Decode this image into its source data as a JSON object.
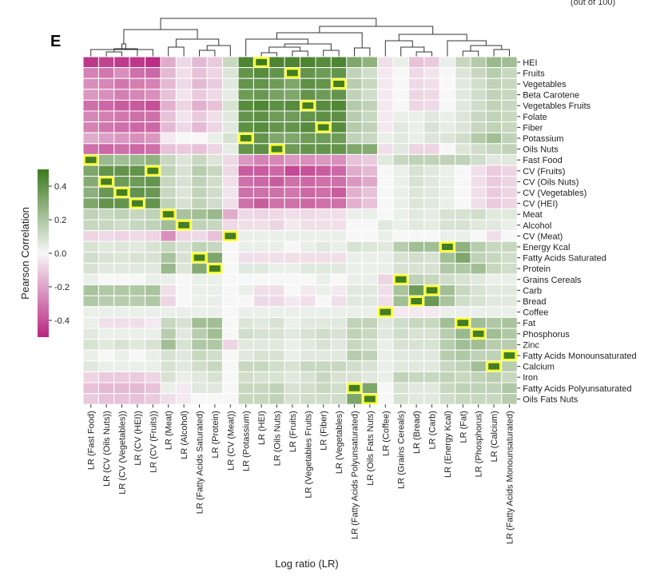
{
  "figure": {
    "panel_label": "E",
    "top_right_note": "(out of 100)"
  },
  "chart_data": {
    "type": "heatmap",
    "title": "",
    "xlabel": "Log ratio (LR)",
    "colorbar_label": "Pearson Correlation",
    "colorbar_range": [
      -0.5,
      0.5
    ],
    "colorbar_ticks": [
      "0.4",
      "0.2",
      "0.0",
      "-0.2",
      "-0.4"
    ],
    "colorbar_tick_values": [
      0.4,
      0.2,
      0.0,
      -0.2,
      -0.4
    ],
    "colors": {
      "negative": "#b8267f",
      "neutral": "#f7f7f7",
      "positive": "#3d7a1f",
      "highlight": "#ffff33",
      "grid": "#ffffff"
    },
    "rows": [
      "HEI",
      "Fruits",
      "Vegetables",
      "Beta Carotene",
      "Vegetables Fruits",
      "Folate",
      "Fiber",
      "Potassium",
      "Oils Nuts",
      "Fast Food",
      "CV (Fruits)",
      "CV (Oils Nuts)",
      "CV (Vegetables)",
      "CV (HEI)",
      "Meat",
      "Alcohol",
      "CV (Meat)",
      "Energy Kcal",
      "Fatty Acids Saturated",
      "Protein",
      "Grains Cereals",
      "Carb",
      "Bread",
      "Coffee",
      "Fat",
      "Phosphorus",
      "Zinc",
      "Fatty Acids Monounsaturated",
      "Calcium",
      "Iron",
      "Fatty Acids Polyunsaturated",
      "Oils Fats Nuts"
    ],
    "columns": [
      "LR (Fast Food)",
      "LR (CV (Oils Nuts))",
      "LR (CV (Vegetables))",
      "LR (CV (HEI))",
      "LR (CV (Fruits))",
      "LR (Meat)",
      "LR (Alcohol)",
      "LR (Fatty Acids Saturated)",
      "LR (Protein)",
      "LR (CV (Meat))",
      "LR (Potassium)",
      "LR (HEI)",
      "LR (Oils Nuts)",
      "LR (Fruits)",
      "LR (Vegetables Fruits)",
      "LR (Fiber)",
      "LR (Vegetables)",
      "LR (Fatty Acids Polyunsaturated)",
      "LR (Oils Fats Nuts)",
      "LR (Coffee)",
      "LR (Grains Cereals)",
      "LR (Bread)",
      "LR (Carb)",
      "LR (Energy Kcal)",
      "LR (Fat)",
      "LR (Phosphorus)",
      "LR (Calcium)",
      "LR (Fatty Acids Monounsaturated)"
    ],
    "values": [
      [
        -0.45,
        -0.42,
        -0.44,
        -0.45,
        -0.48,
        -0.15,
        -0.05,
        -0.12,
        -0.08,
        0.1,
        0.45,
        0.5,
        0.45,
        0.45,
        0.45,
        0.42,
        0.45,
        0.3,
        0.25,
        -0.04,
        0.02,
        -0.1,
        -0.08,
        0.02,
        0.1,
        0.15,
        0.22,
        0.2
      ],
      [
        -0.25,
        -0.28,
        -0.22,
        -0.3,
        -0.32,
        -0.12,
        -0.04,
        -0.1,
        -0.06,
        0.05,
        0.38,
        0.42,
        0.38,
        0.48,
        0.38,
        0.35,
        0.38,
        0.12,
        0.08,
        -0.02,
        0.0,
        -0.05,
        -0.03,
        0.0,
        0.05,
        0.1,
        0.14,
        0.1
      ],
      [
        -0.22,
        -0.24,
        -0.28,
        -0.26,
        -0.25,
        -0.12,
        -0.05,
        -0.12,
        -0.08,
        0.04,
        0.38,
        0.38,
        0.35,
        0.3,
        0.4,
        0.38,
        0.48,
        0.14,
        0.1,
        -0.02,
        0.0,
        -0.05,
        -0.04,
        0.0,
        0.04,
        0.08,
        0.12,
        0.1
      ],
      [
        -0.2,
        -0.22,
        -0.26,
        -0.24,
        -0.22,
        -0.1,
        -0.03,
        -0.08,
        -0.05,
        0.03,
        0.35,
        0.36,
        0.32,
        0.3,
        0.38,
        0.35,
        0.38,
        0.12,
        0.08,
        -0.02,
        0.0,
        -0.06,
        -0.05,
        0.0,
        0.04,
        0.08,
        0.12,
        0.1
      ],
      [
        -0.3,
        -0.32,
        -0.35,
        -0.35,
        -0.38,
        -0.14,
        -0.06,
        -0.14,
        -0.1,
        0.06,
        0.42,
        0.44,
        0.4,
        0.42,
        0.48,
        0.42,
        0.44,
        0.15,
        0.12,
        -0.02,
        0.0,
        -0.06,
        -0.05,
        0.0,
        0.04,
        0.08,
        0.12,
        0.1
      ],
      [
        -0.24,
        -0.26,
        -0.28,
        -0.3,
        -0.3,
        -0.1,
        -0.03,
        -0.08,
        -0.04,
        0.04,
        0.38,
        0.4,
        0.35,
        0.35,
        0.38,
        0.4,
        0.4,
        0.14,
        0.1,
        -0.02,
        0.02,
        0.02,
        0.04,
        0.02,
        0.05,
        0.1,
        0.12,
        0.1
      ],
      [
        -0.25,
        -0.28,
        -0.3,
        -0.32,
        -0.32,
        -0.12,
        -0.05,
        -0.12,
        -0.06,
        0.04,
        0.4,
        0.42,
        0.38,
        0.38,
        0.42,
        0.48,
        0.42,
        0.15,
        0.12,
        -0.02,
        0.04,
        0.02,
        0.06,
        0.03,
        0.05,
        0.1,
        0.12,
        0.1
      ],
      [
        -0.15,
        -0.18,
        -0.2,
        -0.22,
        -0.2,
        -0.02,
        0.0,
        0.0,
        0.02,
        0.06,
        0.48,
        0.38,
        0.3,
        0.3,
        0.35,
        0.35,
        0.35,
        0.12,
        0.1,
        0.02,
        0.04,
        0.02,
        0.05,
        0.05,
        0.08,
        0.15,
        0.2,
        0.12
      ],
      [
        -0.3,
        -0.32,
        -0.3,
        -0.32,
        -0.3,
        -0.1,
        -0.08,
        -0.1,
        -0.06,
        0.03,
        0.38,
        0.4,
        0.48,
        0.35,
        0.38,
        0.38,
        0.38,
        0.3,
        0.28,
        -0.04,
        0.04,
        -0.06,
        -0.06,
        0.0,
        0.05,
        0.08,
        0.1,
        0.12
      ],
      [
        0.48,
        0.22,
        0.2,
        0.22,
        0.25,
        0.1,
        0.05,
        0.1,
        0.05,
        -0.05,
        -0.2,
        -0.25,
        -0.24,
        -0.2,
        -0.22,
        -0.2,
        -0.22,
        -0.1,
        -0.08,
        0.04,
        0.1,
        0.12,
        0.12,
        0.12,
        0.12,
        0.08,
        0.04,
        0.04
      ],
      [
        0.3,
        0.38,
        0.38,
        0.38,
        0.48,
        0.12,
        0.06,
        0.14,
        0.1,
        -0.05,
        -0.35,
        -0.35,
        -0.32,
        -0.4,
        -0.38,
        -0.35,
        -0.32,
        -0.15,
        -0.12,
        0.0,
        0.02,
        0.06,
        0.04,
        0.02,
        0.0,
        -0.04,
        -0.08,
        -0.06
      ],
      [
        0.28,
        0.48,
        0.35,
        0.35,
        0.38,
        0.1,
        0.06,
        0.12,
        0.08,
        -0.04,
        -0.3,
        -0.32,
        -0.35,
        -0.3,
        -0.32,
        -0.3,
        -0.3,
        -0.2,
        -0.16,
        0.0,
        0.02,
        0.06,
        0.04,
        0.02,
        0.0,
        -0.04,
        -0.08,
        -0.06
      ],
      [
        0.26,
        0.36,
        0.48,
        0.38,
        0.36,
        0.1,
        0.05,
        0.12,
        0.08,
        -0.03,
        -0.3,
        -0.3,
        -0.3,
        -0.28,
        -0.32,
        -0.3,
        -0.35,
        -0.14,
        -0.1,
        0.0,
        0.02,
        0.05,
        0.04,
        0.02,
        0.0,
        -0.04,
        -0.08,
        -0.06
      ],
      [
        0.3,
        0.38,
        0.38,
        0.48,
        0.38,
        0.12,
        0.06,
        0.12,
        0.08,
        -0.04,
        -0.3,
        -0.35,
        -0.3,
        -0.3,
        -0.32,
        -0.3,
        -0.3,
        -0.14,
        -0.1,
        0.0,
        0.02,
        0.05,
        0.04,
        0.02,
        0.0,
        -0.04,
        -0.08,
        -0.06
      ],
      [
        0.12,
        0.1,
        0.12,
        0.1,
        0.12,
        0.48,
        0.18,
        0.2,
        0.22,
        -0.15,
        -0.05,
        -0.06,
        -0.05,
        -0.04,
        -0.05,
        -0.04,
        -0.04,
        0.02,
        0.02,
        0.0,
        0.02,
        0.04,
        0.03,
        0.06,
        0.06,
        0.08,
        0.04,
        0.04
      ],
      [
        0.1,
        0.1,
        0.08,
        0.1,
        0.12,
        0.2,
        0.48,
        0.12,
        0.1,
        -0.05,
        -0.04,
        -0.04,
        -0.06,
        -0.02,
        -0.04,
        -0.04,
        -0.04,
        0.0,
        0.0,
        0.04,
        0.02,
        0.04,
        0.03,
        0.06,
        0.06,
        0.04,
        0.04,
        0.02
      ],
      [
        -0.06,
        -0.05,
        -0.06,
        -0.05,
        -0.06,
        -0.22,
        -0.06,
        -0.05,
        -0.1,
        0.48,
        0.02,
        0.02,
        0.02,
        0.02,
        0.02,
        0.02,
        0.02,
        0.0,
        0.0,
        0.02,
        0.0,
        0.0,
        0.0,
        0.02,
        0.02,
        0.0,
        -0.04,
        0.0
      ],
      [
        0.06,
        0.04,
        0.05,
        0.04,
        0.06,
        0.1,
        0.06,
        0.12,
        0.1,
        0.0,
        0.02,
        0.02,
        0.02,
        0.0,
        0.02,
        0.04,
        0.02,
        0.06,
        0.05,
        0.04,
        0.14,
        0.2,
        0.2,
        0.48,
        0.25,
        0.14,
        0.1,
        0.1
      ],
      [
        0.08,
        0.06,
        0.05,
        0.06,
        0.06,
        0.18,
        0.06,
        0.48,
        0.3,
        0.0,
        -0.04,
        -0.04,
        -0.04,
        -0.04,
        -0.04,
        -0.04,
        -0.04,
        0.02,
        0.02,
        0.02,
        0.06,
        0.08,
        0.06,
        0.2,
        0.3,
        0.12,
        0.1,
        0.08
      ],
      [
        0.06,
        0.04,
        0.04,
        0.04,
        0.04,
        0.22,
        0.05,
        0.28,
        0.48,
        0.0,
        0.04,
        0.04,
        0.02,
        0.02,
        0.04,
        0.04,
        0.04,
        0.02,
        0.02,
        0.02,
        0.06,
        0.06,
        0.06,
        0.16,
        0.16,
        0.2,
        0.1,
        0.08
      ],
      [
        0.02,
        0.0,
        0.0,
        0.0,
        0.02,
        0.02,
        0.0,
        0.02,
        0.02,
        0.0,
        0.0,
        0.0,
        0.0,
        0.0,
        0.0,
        0.02,
        0.0,
        0.02,
        0.02,
        -0.06,
        0.48,
        0.12,
        0.1,
        0.08,
        0.06,
        0.04,
        0.02,
        0.02
      ],
      [
        0.18,
        0.16,
        0.16,
        0.16,
        0.18,
        -0.04,
        0.0,
        0.02,
        0.02,
        0.0,
        0.02,
        -0.04,
        -0.04,
        0.0,
        -0.02,
        0.02,
        -0.02,
        0.04,
        0.04,
        -0.04,
        0.18,
        0.35,
        0.48,
        0.2,
        0.1,
        0.06,
        0.04,
        0.04
      ],
      [
        0.16,
        0.14,
        0.14,
        0.14,
        0.16,
        -0.06,
        0.0,
        0.02,
        0.02,
        0.0,
        0.0,
        -0.05,
        -0.05,
        -0.02,
        -0.04,
        0.0,
        -0.04,
        0.04,
        0.04,
        -0.04,
        0.2,
        0.48,
        0.36,
        0.18,
        0.08,
        0.06,
        0.04,
        0.04
      ],
      [
        0.02,
        0.02,
        0.02,
        0.02,
        0.02,
        0.02,
        0.02,
        0.02,
        0.02,
        0.0,
        0.02,
        0.02,
        0.02,
        0.02,
        0.02,
        0.02,
        0.02,
        0.02,
        0.02,
        0.48,
        -0.02,
        -0.02,
        -0.02,
        0.02,
        0.02,
        0.02,
        0.02,
        0.02
      ],
      [
        0.02,
        -0.04,
        -0.04,
        -0.04,
        -0.02,
        0.1,
        0.06,
        0.2,
        0.2,
        0.0,
        0.05,
        0.04,
        0.06,
        0.02,
        0.04,
        0.04,
        0.04,
        0.12,
        0.12,
        0.04,
        0.08,
        0.1,
        0.1,
        0.2,
        0.48,
        0.2,
        0.16,
        0.18
      ],
      [
        0.04,
        0.02,
        0.02,
        0.02,
        0.02,
        0.14,
        0.04,
        0.14,
        0.2,
        0.0,
        0.08,
        0.06,
        0.06,
        0.04,
        0.06,
        0.08,
        0.06,
        0.12,
        0.1,
        0.04,
        0.08,
        0.06,
        0.06,
        0.14,
        0.22,
        0.48,
        0.2,
        0.16
      ],
      [
        0.06,
        0.04,
        0.06,
        0.04,
        0.06,
        0.2,
        0.06,
        0.16,
        0.16,
        -0.06,
        0.04,
        0.04,
        0.04,
        0.02,
        0.04,
        0.06,
        0.04,
        0.1,
        0.08,
        0.02,
        0.06,
        0.06,
        0.06,
        0.14,
        0.2,
        0.2,
        0.14,
        0.14
      ],
      [
        0.02,
        0.0,
        0.02,
        0.0,
        0.02,
        0.06,
        0.04,
        0.1,
        0.08,
        0.0,
        0.04,
        0.06,
        0.06,
        0.02,
        0.04,
        0.04,
        0.04,
        0.14,
        0.12,
        0.02,
        0.04,
        0.04,
        0.04,
        0.14,
        0.16,
        0.12,
        0.12,
        0.48
      ],
      [
        0.04,
        0.02,
        0.02,
        0.02,
        0.02,
        0.06,
        0.04,
        0.08,
        0.1,
        0.0,
        0.1,
        0.1,
        0.08,
        0.06,
        0.1,
        0.1,
        0.1,
        0.08,
        0.06,
        0.02,
        0.04,
        0.04,
        0.04,
        0.1,
        0.12,
        0.2,
        0.48,
        0.14
      ],
      [
        -0.06,
        -0.08,
        -0.08,
        -0.08,
        -0.06,
        0.06,
        0.02,
        0.04,
        0.06,
        0.0,
        0.08,
        0.06,
        0.06,
        0.04,
        0.06,
        0.1,
        0.06,
        0.06,
        0.04,
        0.02,
        0.12,
        0.1,
        0.1,
        0.12,
        0.1,
        0.12,
        0.14,
        0.1
      ],
      [
        -0.1,
        -0.12,
        -0.12,
        -0.12,
        -0.1,
        0.02,
        -0.02,
        0.04,
        0.04,
        0.0,
        0.1,
        0.1,
        0.12,
        0.06,
        0.08,
        0.1,
        0.08,
        0.48,
        0.3,
        0.0,
        0.06,
        0.04,
        0.04,
        0.1,
        0.12,
        0.12,
        0.12,
        0.16
      ],
      [
        -0.08,
        -0.1,
        -0.1,
        -0.1,
        -0.08,
        -0.04,
        -0.02,
        0.0,
        0.0,
        0.0,
        0.1,
        0.1,
        0.12,
        0.06,
        0.08,
        0.08,
        0.08,
        0.3,
        0.48,
        0.0,
        0.06,
        0.04,
        0.04,
        0.08,
        0.1,
        0.1,
        0.1,
        0.14
      ]
    ],
    "highlighted_cells": [
      [
        0,
        11
      ],
      [
        1,
        13
      ],
      [
        2,
        16
      ],
      [
        4,
        14
      ],
      [
        6,
        15
      ],
      [
        7,
        10
      ],
      [
        8,
        12
      ],
      [
        9,
        0
      ],
      [
        10,
        4
      ],
      [
        11,
        1
      ],
      [
        12,
        2
      ],
      [
        13,
        3
      ],
      [
        14,
        5
      ],
      [
        15,
        6
      ],
      [
        16,
        9
      ],
      [
        17,
        23
      ],
      [
        18,
        7
      ],
      [
        19,
        8
      ],
      [
        20,
        20
      ],
      [
        21,
        22
      ],
      [
        22,
        21
      ],
      [
        23,
        19
      ],
      [
        24,
        24
      ],
      [
        25,
        25
      ],
      [
        27,
        27
      ],
      [
        28,
        26
      ],
      [
        30,
        17
      ],
      [
        31,
        18
      ]
    ]
  }
}
